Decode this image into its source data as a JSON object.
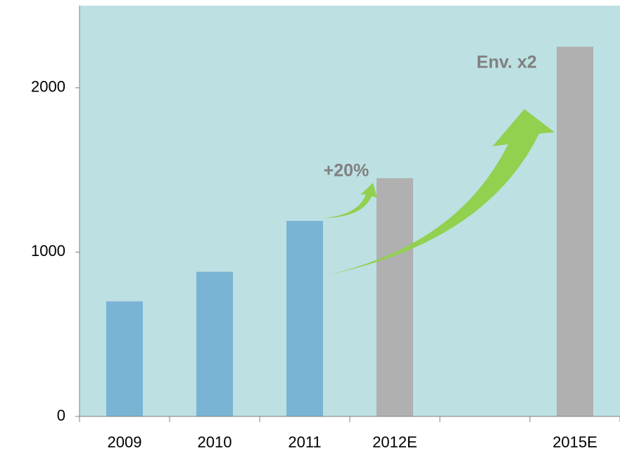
{
  "chart_data": {
    "type": "bar",
    "categories": [
      "2009",
      "2010",
      "2011",
      "2012E",
      null,
      "2015E"
    ],
    "values": [
      700,
      880,
      1190,
      1450,
      null,
      2250
    ],
    "colors": [
      "#7ab4d4",
      "#7ab4d4",
      "#7ab4d4",
      "#b0b0b0",
      "#b0b0b0",
      "#b0b0b0"
    ],
    "ylim": [
      0,
      2500
    ],
    "yticks": [
      0,
      1000,
      2000
    ],
    "grid": false,
    "annotations": [
      "+20%",
      "Env. x2"
    ]
  }
}
